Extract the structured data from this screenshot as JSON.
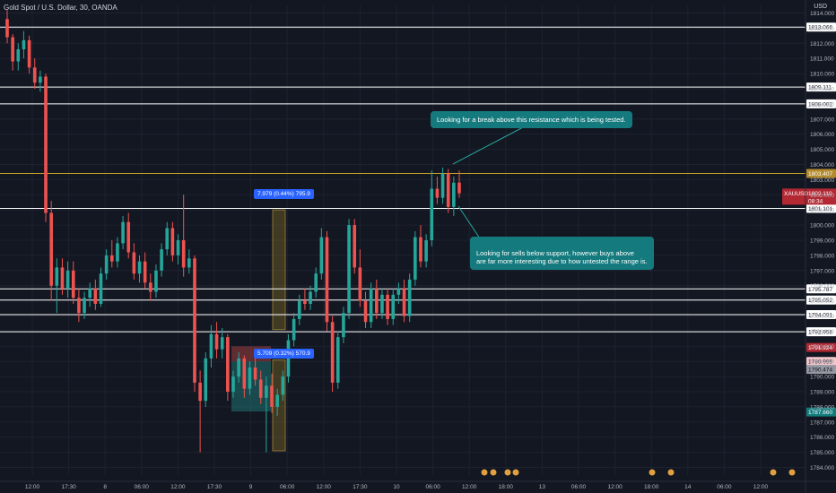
{
  "header": {
    "title": "Gold Spot / U.S. Dollar, 30, OANDA",
    "currency": "USD"
  },
  "annotations": [
    "Looking for a break above this resistance which is being tested.",
    "Looking for sells below support, however buys above\nare far more interesting due to how untested the range is."
  ],
  "measures": [
    "7.979 (0.44%) 795.9",
    "5.709 (0.32%) 570.9"
  ],
  "colors": {
    "up": "#26a69a",
    "down": "#ef5350",
    "resistance": "#c9a227",
    "level": "#ffffff"
  },
  "chart_data": {
    "type": "candlestick",
    "symbol": "XAUUSD",
    "ylim": [
      1783.5,
      1814.5
    ],
    "y_ticks": [
      1784,
      1785,
      1786,
      1787,
      1788,
      1789,
      1790,
      1791,
      1792,
      1793,
      1794,
      1795,
      1796,
      1797,
      1798,
      1799,
      1800,
      1801,
      1802,
      1803,
      1804,
      1805,
      1806,
      1807,
      1808,
      1809,
      1810,
      1811,
      1812,
      1813,
      1814
    ],
    "x_ticks": [
      "12:00",
      "17:30",
      "8",
      "06:00",
      "12:00",
      "17:30",
      "9",
      "06:00",
      "12:00",
      "17:30",
      "10",
      "06:00",
      "12:00",
      "18:00",
      "13",
      "06:00",
      "12:00",
      "18:00",
      "14",
      "06:00",
      "12:00"
    ],
    "price_labels": [
      {
        "label": "1813.066",
        "value": 1813.066,
        "kind": "level"
      },
      {
        "label": "1809.111",
        "value": 1809.111,
        "kind": "level"
      },
      {
        "label": "1808.002",
        "value": 1808.002,
        "kind": "level"
      },
      {
        "label": "1803.407",
        "value": 1803.407,
        "kind": "resistance"
      },
      {
        "label": "1801.101",
        "value": 1801.101,
        "kind": "level"
      },
      {
        "label": "1795.787",
        "value": 1795.787,
        "kind": "level"
      },
      {
        "label": "1795.052",
        "value": 1795.052,
        "kind": "level"
      },
      {
        "label": "1794.091",
        "value": 1794.091,
        "kind": "level"
      },
      {
        "label": "1792.958",
        "value": 1792.958,
        "kind": "level"
      },
      {
        "label": "1791.924",
        "value": 1791.924,
        "kind": "red"
      },
      {
        "label": "1790.999",
        "value": 1790.999,
        "kind": "pink"
      },
      {
        "label": "1790.474",
        "value": 1790.474,
        "kind": "gray"
      },
      {
        "label": "1787.660",
        "value": 1787.66,
        "kind": "teal"
      }
    ],
    "current": {
      "symbol": "XAUUSD",
      "price": "1802.110",
      "countdown": "08:34",
      "value": 1802.11
    },
    "candles": [
      [
        1813.6,
        1814.2,
        1812.0,
        1812.4
      ],
      [
        1812.4,
        1812.6,
        1810.2,
        1810.8
      ],
      [
        1810.8,
        1812.0,
        1810.2,
        1811.6
      ],
      [
        1811.6,
        1812.8,
        1811.0,
        1812.2
      ],
      [
        1812.2,
        1812.5,
        1810.0,
        1810.4
      ],
      [
        1810.4,
        1811.0,
        1809.0,
        1809.4
      ],
      [
        1809.4,
        1810.2,
        1808.8,
        1809.8
      ],
      [
        1809.8,
        1810.0,
        1800.2,
        1800.8
      ],
      [
        1800.8,
        1801.6,
        1795.0,
        1796.0
      ],
      [
        1796.0,
        1797.8,
        1794.2,
        1797.2
      ],
      [
        1797.2,
        1797.8,
        1795.4,
        1795.8
      ],
      [
        1795.8,
        1797.6,
        1795.2,
        1797.0
      ],
      [
        1797.0,
        1797.6,
        1794.8,
        1795.2
      ],
      [
        1795.2,
        1795.8,
        1793.6,
        1794.2
      ],
      [
        1794.2,
        1795.6,
        1793.8,
        1795.2
      ],
      [
        1795.2,
        1796.2,
        1794.6,
        1795.8
      ],
      [
        1795.8,
        1796.4,
        1794.4,
        1794.8
      ],
      [
        1794.8,
        1797.2,
        1794.6,
        1796.8
      ],
      [
        1796.8,
        1798.4,
        1796.4,
        1798.0
      ],
      [
        1798.0,
        1799.0,
        1797.2,
        1797.6
      ],
      [
        1797.6,
        1799.2,
        1797.2,
        1798.8
      ],
      [
        1798.8,
        1800.6,
        1798.4,
        1800.2
      ],
      [
        1800.2,
        1800.8,
        1797.8,
        1798.2
      ],
      [
        1798.2,
        1798.8,
        1796.4,
        1796.8
      ],
      [
        1796.8,
        1798.0,
        1796.2,
        1797.6
      ],
      [
        1797.6,
        1798.2,
        1795.8,
        1796.2
      ],
      [
        1796.2,
        1796.8,
        1795.0,
        1795.6
      ],
      [
        1795.6,
        1797.4,
        1795.2,
        1797.0
      ],
      [
        1797.0,
        1798.8,
        1796.6,
        1798.4
      ],
      [
        1798.4,
        1800.2,
        1798.0,
        1799.8
      ],
      [
        1799.8,
        1800.2,
        1797.6,
        1798.0
      ],
      [
        1798.0,
        1799.4,
        1797.4,
        1799.0
      ],
      [
        1799.0,
        1802.0,
        1796.6,
        1797.2
      ],
      [
        1797.2,
        1798.4,
        1796.8,
        1797.8
      ],
      [
        1797.8,
        1798.0,
        1789.0,
        1789.6
      ],
      [
        1789.6,
        1790.4,
        1785.0,
        1788.4
      ],
      [
        1788.4,
        1791.6,
        1788.0,
        1791.2
      ],
      [
        1791.2,
        1793.4,
        1790.6,
        1792.8
      ],
      [
        1792.8,
        1793.6,
        1791.2,
        1791.8
      ],
      [
        1791.8,
        1793.2,
        1791.2,
        1792.6
      ],
      [
        1792.6,
        1792.8,
        1788.4,
        1789.0
      ],
      [
        1789.0,
        1790.4,
        1788.6,
        1790.0
      ],
      [
        1790.0,
        1791.6,
        1789.6,
        1791.2
      ],
      [
        1791.2,
        1791.4,
        1788.6,
        1789.2
      ],
      [
        1789.2,
        1791.0,
        1788.8,
        1790.6
      ],
      [
        1790.6,
        1791.4,
        1789.4,
        1789.8
      ],
      [
        1789.8,
        1790.4,
        1788.2,
        1788.6
      ],
      [
        1788.6,
        1790.0,
        1785.0,
        1789.4
      ],
      [
        1789.4,
        1790.2,
        1787.6,
        1788.0
      ],
      [
        1788.0,
        1789.2,
        1787.4,
        1788.8
      ],
      [
        1788.8,
        1790.4,
        1788.4,
        1790.0
      ],
      [
        1790.0,
        1792.8,
        1789.6,
        1792.4
      ],
      [
        1792.4,
        1794.2,
        1792.0,
        1793.8
      ],
      [
        1793.8,
        1795.4,
        1793.4,
        1795.0
      ],
      [
        1795.0,
        1795.8,
        1794.4,
        1794.8
      ],
      [
        1794.8,
        1796.0,
        1794.4,
        1795.6
      ],
      [
        1795.6,
        1797.2,
        1795.2,
        1796.8
      ],
      [
        1796.8,
        1799.8,
        1796.4,
        1799.2
      ],
      [
        1799.2,
        1799.6,
        1793.0,
        1793.6
      ],
      [
        1793.6,
        1794.0,
        1789.0,
        1789.6
      ],
      [
        1789.6,
        1793.0,
        1789.2,
        1792.6
      ],
      [
        1792.6,
        1794.6,
        1792.2,
        1794.2
      ],
      [
        1794.2,
        1800.4,
        1793.8,
        1800.0
      ],
      [
        1800.0,
        1800.4,
        1796.8,
        1797.2
      ],
      [
        1797.2,
        1798.4,
        1794.6,
        1795.0
      ],
      [
        1795.0,
        1795.6,
        1793.2,
        1793.6
      ],
      [
        1793.6,
        1796.2,
        1793.2,
        1795.8
      ],
      [
        1795.8,
        1796.4,
        1793.8,
        1794.2
      ],
      [
        1794.2,
        1795.8,
        1793.8,
        1795.4
      ],
      [
        1795.4,
        1795.8,
        1793.4,
        1793.8
      ],
      [
        1793.8,
        1795.8,
        1793.4,
        1795.4
      ],
      [
        1795.4,
        1796.2,
        1794.8,
        1795.8
      ],
      [
        1795.8,
        1796.4,
        1793.6,
        1794.0
      ],
      [
        1794.0,
        1796.8,
        1793.6,
        1796.4
      ],
      [
        1796.4,
        1799.6,
        1796.0,
        1799.2
      ],
      [
        1799.2,
        1800.0,
        1797.2,
        1797.6
      ],
      [
        1797.6,
        1799.4,
        1797.2,
        1799.0
      ],
      [
        1799.0,
        1803.6,
        1798.6,
        1802.4
      ],
      [
        1802.4,
        1803.2,
        1801.4,
        1801.8
      ],
      [
        1801.8,
        1803.8,
        1801.4,
        1803.4
      ],
      [
        1803.4,
        1803.7,
        1800.8,
        1801.2
      ],
      [
        1801.2,
        1803.2,
        1800.6,
        1802.8
      ],
      [
        1802.8,
        1803.6,
        1801.8,
        1802.1
      ]
    ]
  }
}
